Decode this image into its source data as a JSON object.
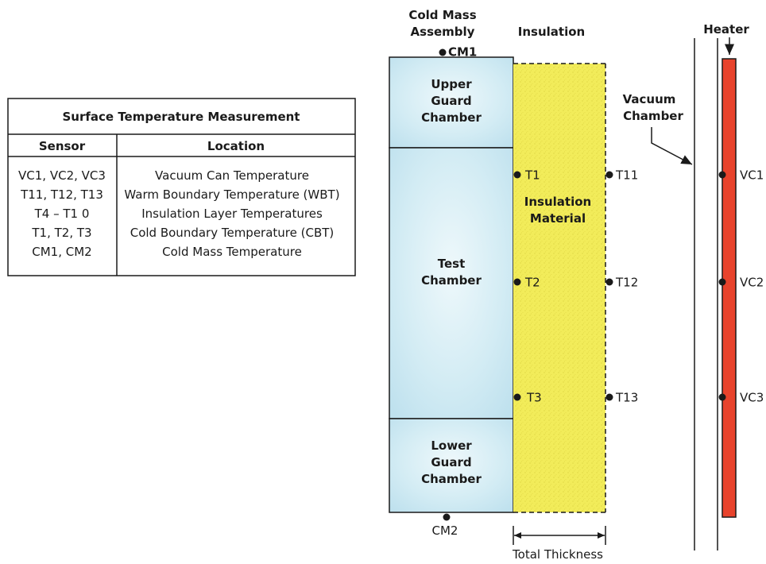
{
  "table": {
    "title": "Surface Temperature Measurement",
    "col_sensor": "Sensor",
    "col_location": "Location",
    "rows": [
      {
        "sensor": "VC1, VC2, VC3",
        "location": "Vacuum Can Temperature"
      },
      {
        "sensor": "T11, T12, T13",
        "location": "Warm Boundary Temperature (WBT)"
      },
      {
        "sensor": "T4 – T1 0",
        "location": "Insulation Layer Temperatures"
      },
      {
        "sensor": "T1, T2, T3",
        "location": "Cold Boundary Temperature (CBT)"
      },
      {
        "sensor": "CM1, CM2",
        "location": "Cold Mass Temperature"
      }
    ]
  },
  "diagram": {
    "cold_mass_assembly": [
      "Cold Mass",
      "Assembly"
    ],
    "insulation_header": "Insulation",
    "heater_label": "Heater",
    "vacuum_chamber": [
      "Vacuum",
      "Chamber"
    ],
    "upper_guard": [
      "Upper",
      "Guard",
      "Chamber"
    ],
    "test_chamber": [
      "Test",
      "Chamber"
    ],
    "lower_guard": [
      "Lower",
      "Guard",
      "Chamber"
    ],
    "insulation_material": [
      "Insulation",
      "Material"
    ],
    "total_thickness": "Total Thickness",
    "sensors": {
      "cm1": "CM1",
      "cm2": "CM2",
      "cold": [
        "T1",
        "T2",
        "T3"
      ],
      "warm": [
        "T11",
        "T12",
        "T13"
      ],
      "vacuum": [
        "VC1",
        "VC2",
        "VC3"
      ]
    }
  },
  "colors": {
    "chamber_fill": "#cfeaf3",
    "insulation_fill": "#f2ec5a",
    "heater_fill": "#e8432c",
    "line": "#1a1a1a"
  }
}
